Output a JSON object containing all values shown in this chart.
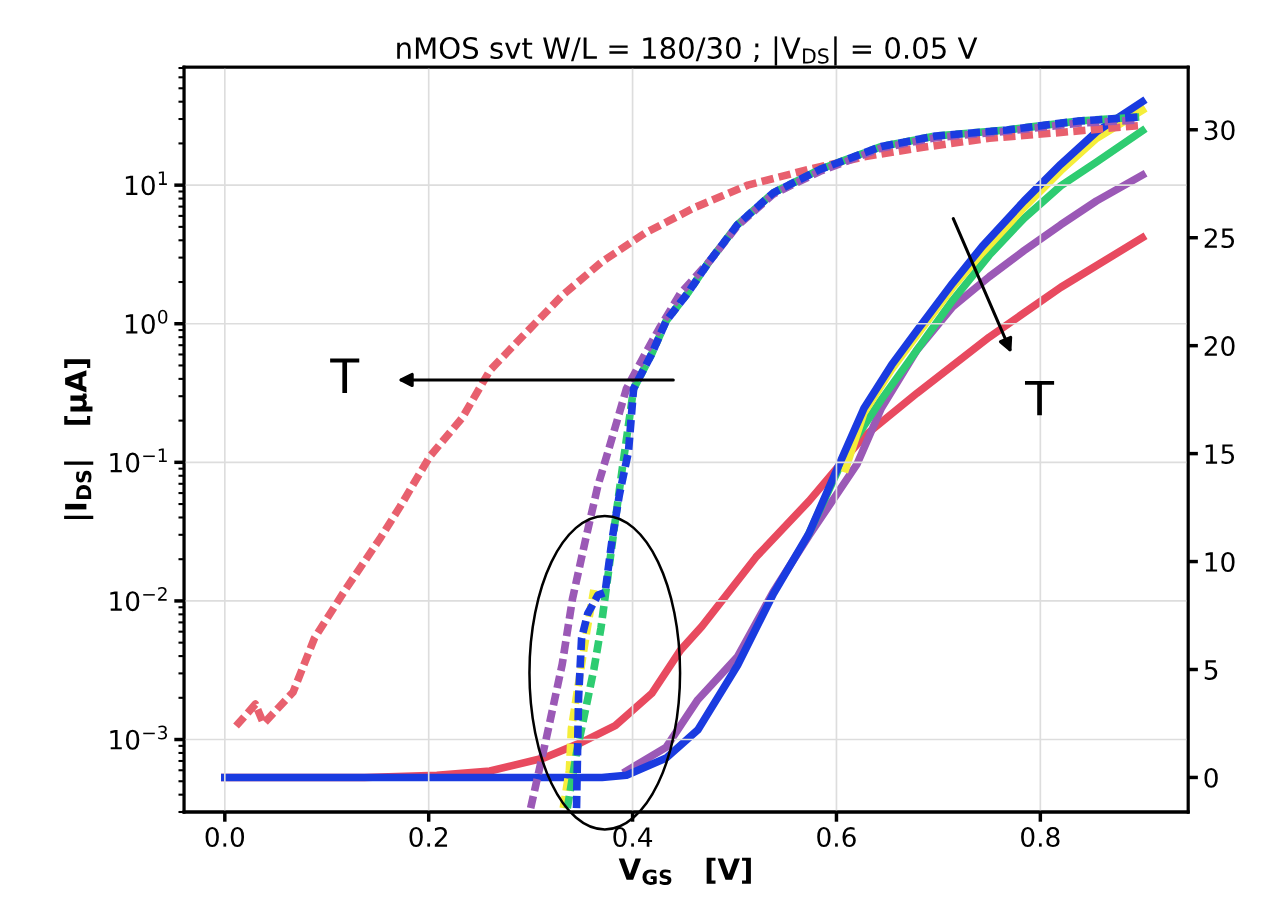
{
  "chart_data": {
    "type": "line",
    "title": "nMOS svt W/L = 180/30 ; |V$_{DS}$| = 0.05 V",
    "xlabel": "V$_{GS}$   [V]",
    "ylabel": "|I$_{DS}$|   [µA]",
    "log": "y",
    "grid": true,
    "xlim": [
      -0.04,
      0.945
    ],
    "xticks": [
      {
        "value": 0.0,
        "label": "0.0"
      },
      {
        "value": 0.2,
        "label": "0.2"
      },
      {
        "value": 0.4,
        "label": "0.4"
      },
      {
        "value": 0.6,
        "label": "0.6"
      },
      {
        "value": 0.8,
        "label": "0.8"
      }
    ],
    "ylim": [
      0.0003,
      71
    ],
    "yticks": [
      {
        "value": 0.001,
        "label": "10$^{−3}$"
      },
      {
        "value": 0.01,
        "label": "10$^{−2}$"
      },
      {
        "value": 0.1,
        "label": "10$^{−1}$"
      },
      {
        "value": 1,
        "label": "10$^{0}$"
      },
      {
        "value": 10,
        "label": "10$^{1}$"
      }
    ],
    "y2lim": [
      -1.6,
      32.9
    ],
    "y2ticks": [
      0,
      5,
      10,
      15,
      20,
      25,
      30
    ],
    "annotations": [
      "T",
      "T"
    ],
    "series": [
      {
        "type": "line",
        "axis": "y",
        "line_style": "dashed",
        "color": "#e8606e",
        "x": [
          0.011,
          0.03,
          0.038,
          0.067,
          0.088,
          0.119,
          0.152,
          0.172,
          0.201,
          0.233,
          0.26,
          0.292,
          0.331,
          0.37,
          0.412,
          0.461,
          0.513,
          0.573,
          0.627,
          0.679,
          0.75,
          0.82,
          0.9
        ],
        "values": [
          0.00125,
          0.0018,
          0.0013,
          0.0022,
          0.0054,
          0.0123,
          0.028,
          0.048,
          0.11,
          0.21,
          0.46,
          0.81,
          1.6,
          2.8,
          4.5,
          6.9,
          10,
          13,
          16,
          18.5,
          21.8,
          24,
          27
        ]
      },
      {
        "axis": "y",
        "line_style": "dashed",
        "color": "#f5ee3a",
        "x": [
          0.332,
          0.338,
          0.34,
          0.355,
          0.362
        ],
        "values": [
          0.00032,
          0.0006,
          0.0012,
          0.006,
          0.012
        ]
      },
      {
        "type": "line",
        "axis": "y",
        "line_style": "dashed",
        "color": "#2ecc71",
        "x": [
          0.336,
          0.345,
          0.362,
          0.369,
          0.376,
          0.383,
          0.39,
          0.401,
          0.419,
          0.433,
          0.454,
          0.475,
          0.503,
          0.538,
          0.584,
          0.644,
          0.697,
          0.767,
          0.837,
          0.897
        ],
        "values": [
          0.00032,
          0.0008,
          0.0032,
          0.0064,
          0.0155,
          0.038,
          0.091,
          0.34,
          0.61,
          1.05,
          1.66,
          2.8,
          5.2,
          8.8,
          13,
          19,
          22.6,
          25,
          29,
          31
        ]
      },
      {
        "type": "line",
        "axis": "y",
        "line_style": "dashed",
        "color": "#9b59b6",
        "x": [
          0.3,
          0.316,
          0.331,
          0.341,
          0.354,
          0.366,
          0.376,
          0.394,
          0.412,
          0.426,
          0.447,
          0.475,
          0.503,
          0.538,
          0.584,
          0.644,
          0.697,
          0.767,
          0.837,
          0.897
        ],
        "values": [
          0.00032,
          0.00107,
          0.0035,
          0.0103,
          0.028,
          0.068,
          0.12,
          0.34,
          0.6,
          0.92,
          1.66,
          2.8,
          5.1,
          8.6,
          12.6,
          18.5,
          22,
          24.5,
          28,
          29.5
        ]
      },
      {
        "type": "line",
        "axis": "y",
        "line_style": "dashed",
        "color": "#1a3be0",
        "x": [
          0.345,
          0.347,
          0.35,
          0.356,
          0.366,
          0.373,
          0.38,
          0.387,
          0.396,
          0.401,
          0.419,
          0.433,
          0.454,
          0.475,
          0.503,
          0.538,
          0.584,
          0.644,
          0.697,
          0.767,
          0.837,
          0.897
        ],
        "values": [
          0.00032,
          0.002,
          0.0054,
          0.0081,
          0.011,
          0.0115,
          0.028,
          0.058,
          0.12,
          0.34,
          0.61,
          1.05,
          1.66,
          2.8,
          5.2,
          8.8,
          13,
          19,
          22.6,
          25,
          29,
          31
        ]
      },
      {
        "type": "line",
        "axis": "y2",
        "line_style": "solid",
        "color": "#e84a5f",
        "x": [
          0.0,
          0.137,
          0.208,
          0.26,
          0.313,
          0.349,
          0.383,
          0.419,
          0.447,
          0.468,
          0.521,
          0.573,
          0.627,
          0.679,
          0.75,
          0.82,
          0.9
        ],
        "values": [
          0.0,
          0.0,
          0.1,
          0.3,
          0.9,
          1.6,
          2.4,
          3.9,
          5.9,
          7.0,
          10.2,
          12.8,
          15.8,
          17.8,
          20.4,
          22.7,
          25.0
        ]
      },
      {
        "axis": "y2",
        "line_style": "solid",
        "color": "#9b59b6",
        "x": [
          0.394,
          0.433,
          0.464,
          0.503,
          0.538,
          0.573,
          0.62,
          0.644,
          0.679,
          0.714,
          0.75,
          0.784,
          0.82,
          0.855,
          0.9
        ],
        "values": [
          0.3,
          1.4,
          3.6,
          5.6,
          8.6,
          11.2,
          14.5,
          17.1,
          19.8,
          21.8,
          23.2,
          24.4,
          25.6,
          26.7,
          27.9
        ]
      },
      {
        "type": "line",
        "axis": "y2",
        "line_style": "solid",
        "color": "#2ecc71",
        "x": [
          0.573,
          0.609,
          0.644,
          0.679,
          0.714,
          0.75,
          0.784,
          0.82,
          0.855,
          0.9
        ],
        "values": [
          11.3,
          15.0,
          17.5,
          19.8,
          22.1,
          24.2,
          25.9,
          27.4,
          28.5,
          29.95
        ]
      },
      {
        "type": "line",
        "axis": "y2",
        "line_style": "solid",
        "color": "#f5ee3a",
        "x": [
          0.609,
          0.627,
          0.654,
          0.679,
          0.714,
          0.743,
          0.784,
          0.82,
          0.855,
          0.9
        ],
        "values": [
          14.3,
          16.9,
          18.9,
          20.5,
          22.7,
          24.3,
          26.4,
          28.1,
          29.6,
          30.9
        ]
      },
      {
        "type": "line",
        "axis": "y2",
        "line_style": "solid",
        "color": "#1a3be0",
        "x": [
          0.0,
          0.37,
          0.394,
          0.433,
          0.464,
          0.503,
          0.538,
          0.573,
          0.598,
          0.627,
          0.654,
          0.679,
          0.714,
          0.743,
          0.784,
          0.82,
          0.855,
          0.9
        ],
        "values": [
          0.0,
          0.0,
          0.1,
          0.9,
          2.2,
          5.2,
          8.5,
          11.3,
          14.0,
          17.1,
          19.1,
          20.7,
          22.9,
          24.6,
          26.7,
          28.4,
          29.9,
          31.3
        ]
      }
    ]
  }
}
